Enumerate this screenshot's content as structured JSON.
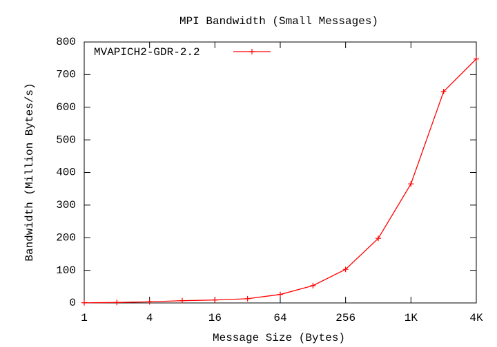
{
  "chart_data": {
    "type": "line",
    "title": "MPI Bandwidth (Small Messages)",
    "xlabel": "Message Size (Bytes)",
    "ylabel": "Bandwidth (Million Bytes/s)",
    "x": [
      1,
      2,
      4,
      8,
      16,
      32,
      64,
      128,
      256,
      512,
      1024,
      2048,
      4096
    ],
    "series": [
      {
        "name": "MVAPICH2-GDR-2.2",
        "color": "#ff0000",
        "values": [
          0.5,
          1.5,
          3.5,
          7,
          9,
          13,
          26,
          53,
          103,
          198,
          365,
          648,
          748
        ]
      }
    ],
    "xscale": "log",
    "xlim": [
      1,
      4096
    ],
    "xticks": [
      1,
      4,
      16,
      64,
      256,
      {
        "value": 1024,
        "label": "1K"
      },
      {
        "value": 4096,
        "label": "4K"
      }
    ],
    "ylim": [
      0,
      800
    ],
    "yticks": [
      0,
      100,
      200,
      300,
      400,
      500,
      600,
      700,
      800
    ],
    "legend": "top-left"
  }
}
